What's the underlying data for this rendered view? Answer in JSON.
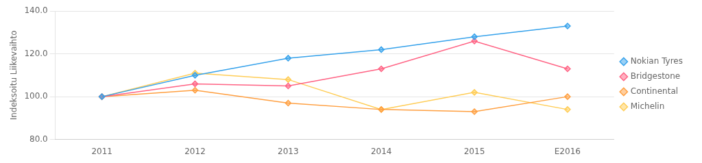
{
  "chart_data": {
    "type": "line",
    "categories": [
      "2011",
      "2012",
      "2013",
      "2014",
      "2015",
      "E2016"
    ],
    "series": [
      {
        "name": "Nokian Tyres",
        "values": [
          100.0,
          110.0,
          118.0,
          122.0,
          128.0,
          133.0
        ]
      },
      {
        "name": "Bridgestone",
        "values": [
          100.0,
          106.0,
          105.0,
          113.0,
          126.0,
          113.0
        ]
      },
      {
        "name": "Continental",
        "values": [
          100.0,
          103.0,
          97.0,
          94.0,
          93.0,
          100.0
        ]
      },
      {
        "name": "Michelin",
        "values": [
          100.0,
          111.0,
          108.0,
          94.0,
          102.0,
          94.0
        ]
      }
    ],
    "ylabel": "Indeksoitu Liikevaihto",
    "ylim": [
      80.0,
      140.0
    ],
    "yticks": [
      {
        "value": 80.0,
        "label": "80.0"
      },
      {
        "value": 100.0,
        "label": "100.0"
      },
      {
        "value": 120.0,
        "label": "120.0"
      },
      {
        "value": 140.0,
        "label": "140.0"
      }
    ],
    "grid": true,
    "legend": "right",
    "marker": "diamond"
  }
}
